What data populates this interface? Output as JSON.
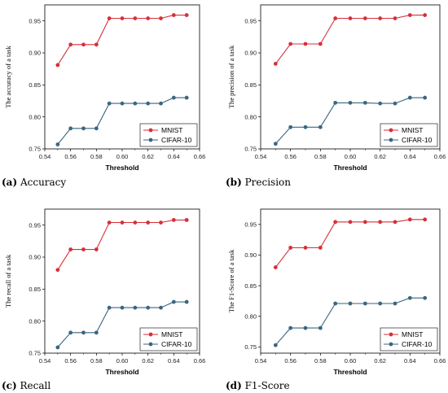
{
  "chart_data": [
    {
      "type": "line",
      "caption_letter": "(a)",
      "caption_text": "Accuracy",
      "xlabel": "Threshold",
      "ylabel": "The accuracy of a task",
      "xlim": [
        0.54,
        0.66
      ],
      "ylim": [
        0.75,
        0.975
      ],
      "xticks": [
        "0.54",
        "0.56",
        "0.58",
        "0.60",
        "0.62",
        "0.64",
        "0.66"
      ],
      "yticks": [
        "0.75",
        "0.80",
        "0.85",
        "0.90",
        "0.95"
      ],
      "x": [
        0.55,
        0.56,
        0.57,
        0.58,
        0.59,
        0.6,
        0.61,
        0.62,
        0.63,
        0.64,
        0.65
      ],
      "series": [
        {
          "name": "MNIST",
          "color": "#d6303a",
          "values": [
            0.881,
            0.913,
            0.913,
            0.913,
            0.954,
            0.954,
            0.954,
            0.954,
            0.954,
            0.959,
            0.959
          ]
        },
        {
          "name": "CIFAR-10",
          "color": "#3a6680",
          "values": [
            0.757,
            0.782,
            0.782,
            0.782,
            0.821,
            0.821,
            0.821,
            0.821,
            0.821,
            0.83,
            0.83
          ]
        }
      ],
      "legend": "bottom-right"
    },
    {
      "type": "line",
      "caption_letter": "(b)",
      "caption_text": "Precision",
      "xlabel": "Threshold",
      "ylabel": "The precision of a task",
      "xlim": [
        0.54,
        0.66
      ],
      "ylim": [
        0.75,
        0.975
      ],
      "xticks": [
        "0.54",
        "0.56",
        "0.58",
        "0.60",
        "0.62",
        "0.64",
        "0.66"
      ],
      "yticks": [
        "0.75",
        "0.80",
        "0.85",
        "0.90",
        "0.95"
      ],
      "x": [
        0.55,
        0.56,
        0.57,
        0.58,
        0.59,
        0.6,
        0.61,
        0.62,
        0.63,
        0.64,
        0.65
      ],
      "series": [
        {
          "name": "MNIST",
          "color": "#d6303a",
          "values": [
            0.883,
            0.914,
            0.914,
            0.914,
            0.954,
            0.954,
            0.954,
            0.954,
            0.954,
            0.959,
            0.959
          ]
        },
        {
          "name": "CIFAR-10",
          "color": "#3a6680",
          "values": [
            0.758,
            0.784,
            0.784,
            0.784,
            0.822,
            0.822,
            0.822,
            0.821,
            0.821,
            0.83,
            0.83
          ]
        }
      ],
      "legend": "bottom-right"
    },
    {
      "type": "line",
      "caption_letter": "(c)",
      "caption_text": "Recall",
      "xlabel": "Threshold",
      "ylabel": "The recall of a task",
      "xlim": [
        0.54,
        0.66
      ],
      "ylim": [
        0.75,
        0.975
      ],
      "xticks": [
        "0.54",
        "0.56",
        "0.58",
        "0.60",
        "0.62",
        "0.64",
        "0.66"
      ],
      "yticks": [
        "0.75",
        "0.80",
        "0.85",
        "0.90",
        "0.95"
      ],
      "x": [
        0.55,
        0.56,
        0.57,
        0.58,
        0.59,
        0.6,
        0.61,
        0.62,
        0.63,
        0.64,
        0.65
      ],
      "series": [
        {
          "name": "MNIST",
          "color": "#d6303a",
          "values": [
            0.88,
            0.912,
            0.912,
            0.912,
            0.954,
            0.954,
            0.954,
            0.954,
            0.954,
            0.958,
            0.958
          ]
        },
        {
          "name": "CIFAR-10",
          "color": "#3a6680",
          "values": [
            0.759,
            0.782,
            0.782,
            0.782,
            0.821,
            0.821,
            0.821,
            0.821,
            0.821,
            0.83,
            0.83
          ]
        }
      ],
      "legend": "bottom-right"
    },
    {
      "type": "line",
      "caption_letter": "(d)",
      "caption_text": "F1-Score",
      "xlabel": "Threshold",
      "ylabel": "The F1-Score of a task",
      "xlim": [
        0.54,
        0.66
      ],
      "ylim": [
        0.74,
        0.975
      ],
      "xticks": [
        "0.54",
        "0.56",
        "0.58",
        "0.60",
        "0.62",
        "0.64",
        "0.66"
      ],
      "yticks": [
        "0.75",
        "0.80",
        "0.85",
        "0.90",
        "0.95"
      ],
      "x": [
        0.55,
        0.56,
        0.57,
        0.58,
        0.59,
        0.6,
        0.61,
        0.62,
        0.63,
        0.64,
        0.65
      ],
      "series": [
        {
          "name": "MNIST",
          "color": "#d6303a",
          "values": [
            0.88,
            0.912,
            0.912,
            0.912,
            0.954,
            0.954,
            0.954,
            0.954,
            0.954,
            0.958,
            0.958
          ]
        },
        {
          "name": "CIFAR-10",
          "color": "#3a6680",
          "values": [
            0.753,
            0.781,
            0.781,
            0.781,
            0.821,
            0.821,
            0.821,
            0.821,
            0.821,
            0.83,
            0.83
          ]
        }
      ],
      "legend": "bottom-right"
    }
  ]
}
